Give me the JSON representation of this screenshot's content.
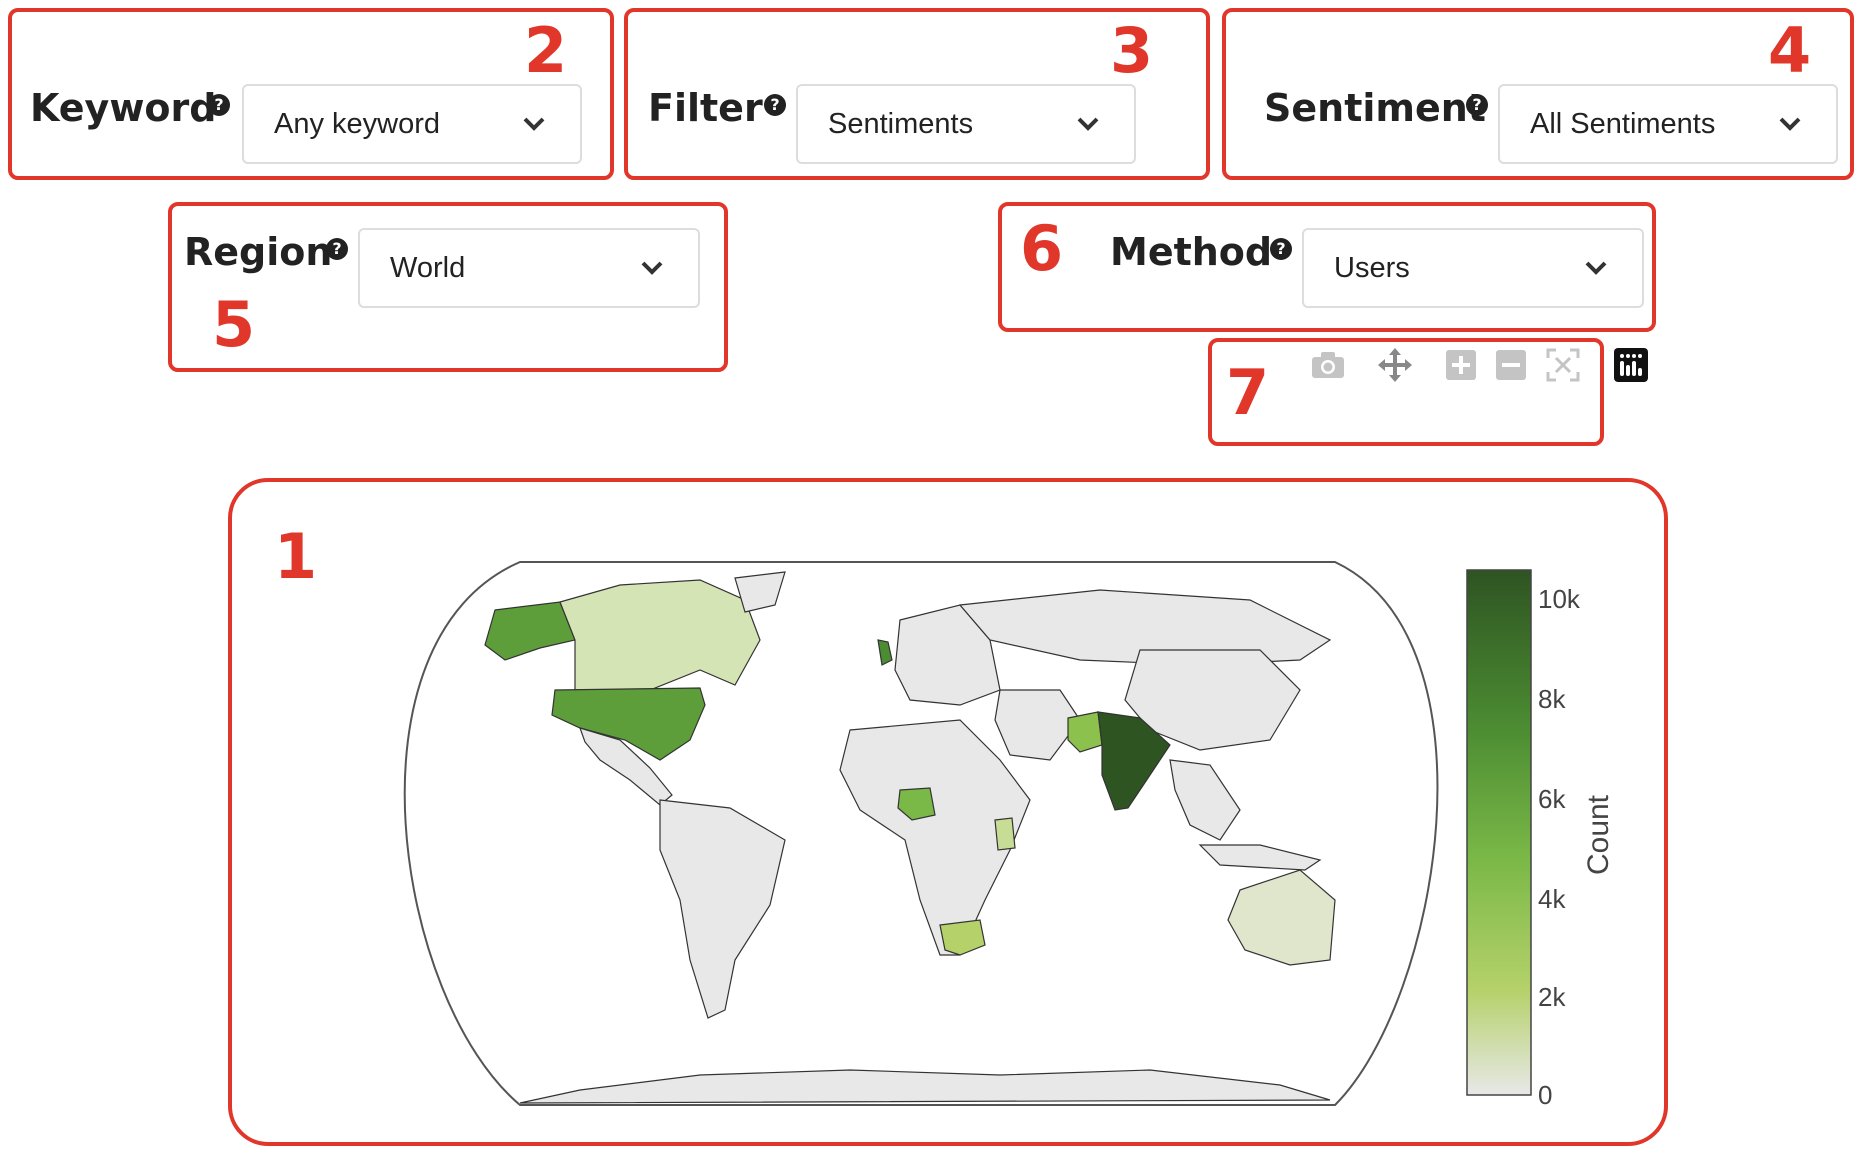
{
  "annotations": {
    "n1": "1",
    "n2": "2",
    "n3": "3",
    "n4": "4",
    "n5": "5",
    "n6": "6",
    "n7": "7"
  },
  "controls": {
    "keyword": {
      "label": "Keyword",
      "value": "Any keyword"
    },
    "filter": {
      "label": "Filter",
      "value": "Sentiments"
    },
    "sentiment": {
      "label": "Sentiment",
      "value": "All Sentiments"
    },
    "region": {
      "label": "Region",
      "value": "World"
    },
    "method": {
      "label": "Method",
      "value": "Users"
    }
  },
  "toolbar": {
    "icons": [
      "camera-icon",
      "pan-icon",
      "zoom-in-icon",
      "zoom-out-icon",
      "autoscale-icon",
      "plotly-logo-icon"
    ]
  },
  "chart_data": {
    "type": "choropleth",
    "colorbar": {
      "title": "Count",
      "ticks": [
        "0",
        "2k",
        "4k",
        "6k",
        "8k",
        "10k"
      ],
      "range": [
        0,
        10500
      ],
      "colors": [
        "#e8e8e8",
        "#b5d16a",
        "#7ab848",
        "#4c8c32",
        "#2e5422"
      ]
    },
    "regions": [
      {
        "name": "India",
        "value": 10500
      },
      {
        "name": "United States",
        "value": 6000
      },
      {
        "name": "Nigeria",
        "value": 4000
      },
      {
        "name": "Pakistan",
        "value": 3500
      },
      {
        "name": "United Kingdom",
        "value": 5000
      },
      {
        "name": "Canada",
        "value": 1500
      },
      {
        "name": "South Africa",
        "value": 2000
      },
      {
        "name": "Kenya",
        "value": 1500
      },
      {
        "name": "Australia",
        "value": 500
      }
    ]
  }
}
